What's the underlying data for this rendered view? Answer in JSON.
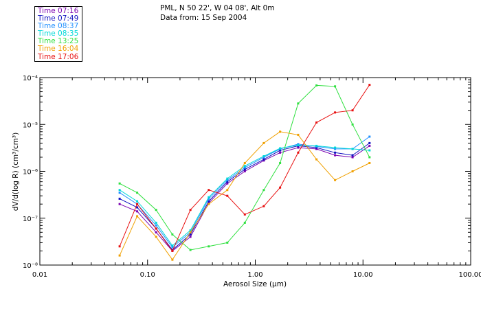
{
  "header": {
    "location": "PML, N 50 22', W 04 08', Alt 0m",
    "date_line": "Data from: 15 Sep 2004"
  },
  "legend": [
    {
      "label": "Time 07:16",
      "color": "#7a00b0"
    },
    {
      "label": "Time 07:49",
      "color": "#1010c0"
    },
    {
      "label": "Time 08:37",
      "color": "#1f8fff"
    },
    {
      "label": "Time 08:35",
      "color": "#00d8d8"
    },
    {
      "label": "Time 13:25",
      "color": "#30e040"
    },
    {
      "label": "Time 16:04",
      "color": "#f0a000"
    },
    {
      "label": "Time 17:06",
      "color": "#e81010"
    }
  ],
  "chart_data": {
    "type": "line",
    "x_scale": "log",
    "y_scale": "log",
    "xlabel": "Aerosol Size (µm)",
    "ylabel": "dV/d(log R) (cm³/cm³)",
    "xlim": [
      0.01,
      100.0
    ],
    "ylim": [
      1e-08,
      0.0001
    ],
    "x_ticks": [
      {
        "value": 0.01,
        "label": "0.01"
      },
      {
        "value": 0.1,
        "label": "0.10"
      },
      {
        "value": 1.0,
        "label": "1.00"
      },
      {
        "value": 10.0,
        "label": "10.00"
      },
      {
        "value": 100.0,
        "label": "100.00"
      }
    ],
    "y_ticks": [
      {
        "value": 1e-08,
        "label": "10⁻⁸"
      },
      {
        "value": 1e-07,
        "label": "10⁻⁷"
      },
      {
        "value": 1e-06,
        "label": "10⁻⁶"
      },
      {
        "value": 1e-05,
        "label": "10⁻⁵"
      },
      {
        "value": 0.0001,
        "label": "10⁻⁴"
      }
    ],
    "x": [
      0.055,
      0.08,
      0.12,
      0.17,
      0.25,
      0.37,
      0.55,
      0.8,
      1.2,
      1.7,
      2.5,
      3.7,
      5.5,
      8.0,
      11.5
    ],
    "series": [
      {
        "name": "Time 07:16",
        "color": "#7a00b0",
        "values": [
          2e-07,
          1.4e-07,
          5e-08,
          2e-08,
          4e-08,
          2.1e-07,
          5.5e-07,
          1e-06,
          1.7e-06,
          2.5e-06,
          3.2e-06,
          3e-06,
          2.2e-06,
          2e-06,
          3.5e-06
        ]
      },
      {
        "name": "Time 07:49",
        "color": "#1010c0",
        "values": [
          2.6e-07,
          1.7e-07,
          6e-08,
          2.1e-08,
          4.5e-08,
          2.3e-07,
          6e-07,
          1.1e-06,
          1.8e-06,
          2.8e-06,
          3.5e-06,
          3.2e-06,
          2.5e-06,
          2.2e-06,
          4e-06
        ]
      },
      {
        "name": "Time 08:37",
        "color": "#1f8fff",
        "values": [
          3.5e-07,
          2e-07,
          7e-08,
          2.4e-08,
          5e-08,
          2.6e-07,
          6.5e-07,
          1.2e-06,
          2e-06,
          3e-06,
          3.8e-06,
          3.4e-06,
          3e-06,
          3e-06,
          5.5e-06
        ]
      },
      {
        "name": "Time 08:35",
        "color": "#00d8d8",
        "values": [
          4e-07,
          2.3e-07,
          8e-08,
          2.6e-08,
          5.5e-08,
          2.8e-07,
          7e-07,
          1.3e-06,
          2.1e-06,
          3.1e-06,
          3.6e-06,
          3.5e-06,
          3.2e-06,
          3e-06,
          2.8e-06
        ]
      },
      {
        "name": "Time 13:25",
        "color": "#30e040",
        "values": [
          5.5e-07,
          3.5e-07,
          1.5e-07,
          4.5e-08,
          2.1e-08,
          2.5e-08,
          3e-08,
          8e-08,
          4e-07,
          1.5e-06,
          2.8e-05,
          6.8e-05,
          6.5e-05,
          1e-05,
          2e-06
        ]
      },
      {
        "name": "Time 16:04",
        "color": "#f0a000",
        "values": [
          1.6e-08,
          1.1e-07,
          4e-08,
          1.3e-08,
          5e-08,
          2e-07,
          4e-07,
          1.5e-06,
          4e-06,
          7e-06,
          6e-06,
          1.8e-06,
          6.5e-07,
          1e-06,
          1.5e-06
        ]
      },
      {
        "name": "Time 17:06",
        "color": "#e81010",
        "values": [
          2.5e-08,
          2e-07,
          6e-08,
          2e-08,
          1.5e-07,
          4e-07,
          3e-07,
          1.2e-07,
          1.8e-07,
          4.5e-07,
          2.5e-06,
          1.1e-05,
          1.8e-05,
          2e-05,
          7e-05
        ]
      }
    ]
  }
}
